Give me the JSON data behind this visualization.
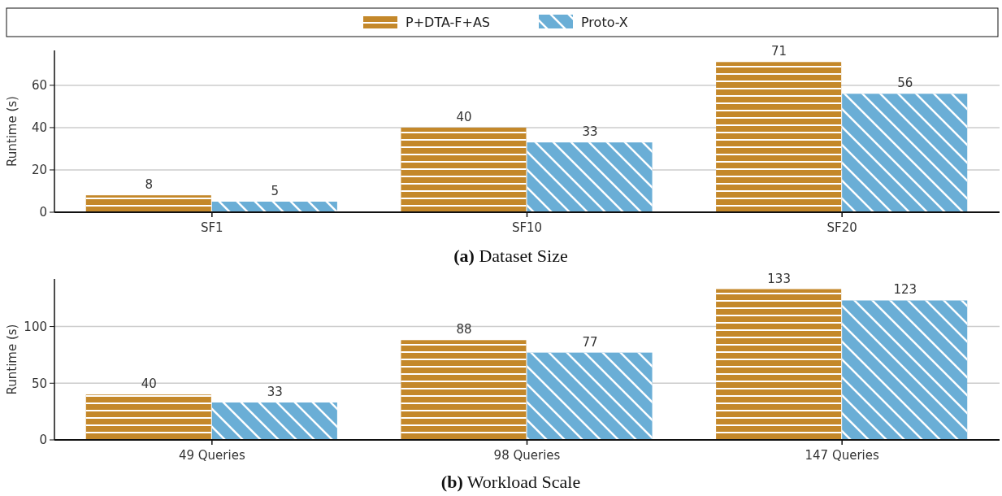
{
  "chart_data": [
    {
      "type": "bar",
      "title": "(a) Dataset Size",
      "ylabel": "Runtime (s)",
      "categories": [
        "SF1",
        "SF10",
        "SF20"
      ],
      "series": [
        {
          "name": "P+DTA-F+AS",
          "color": "#c4882a",
          "values": [
            8,
            40,
            71
          ]
        },
        {
          "name": "Proto-X",
          "color": "#6aaed6",
          "values": [
            5,
            33,
            56
          ]
        }
      ],
      "ylim": [
        0,
        76.5
      ],
      "yticks": [
        0,
        20,
        40,
        60
      ],
      "grid": "y",
      "legend": "top",
      "data_labels": true
    },
    {
      "type": "bar",
      "title": "(b) Workload Scale",
      "ylabel": "Runtime (s)",
      "categories": [
        "49 Queries",
        "98 Queries",
        "147 Queries"
      ],
      "series": [
        {
          "color": "#c4882a",
          "values": [
            40,
            88,
            133
          ]
        },
        {
          "color": "#6aaed6",
          "values": [
            33,
            77,
            123
          ]
        }
      ],
      "ylim": [
        0,
        142
      ],
      "yticks": [
        0,
        50,
        100
      ],
      "grid": "y",
      "data_labels": true
    }
  ]
}
